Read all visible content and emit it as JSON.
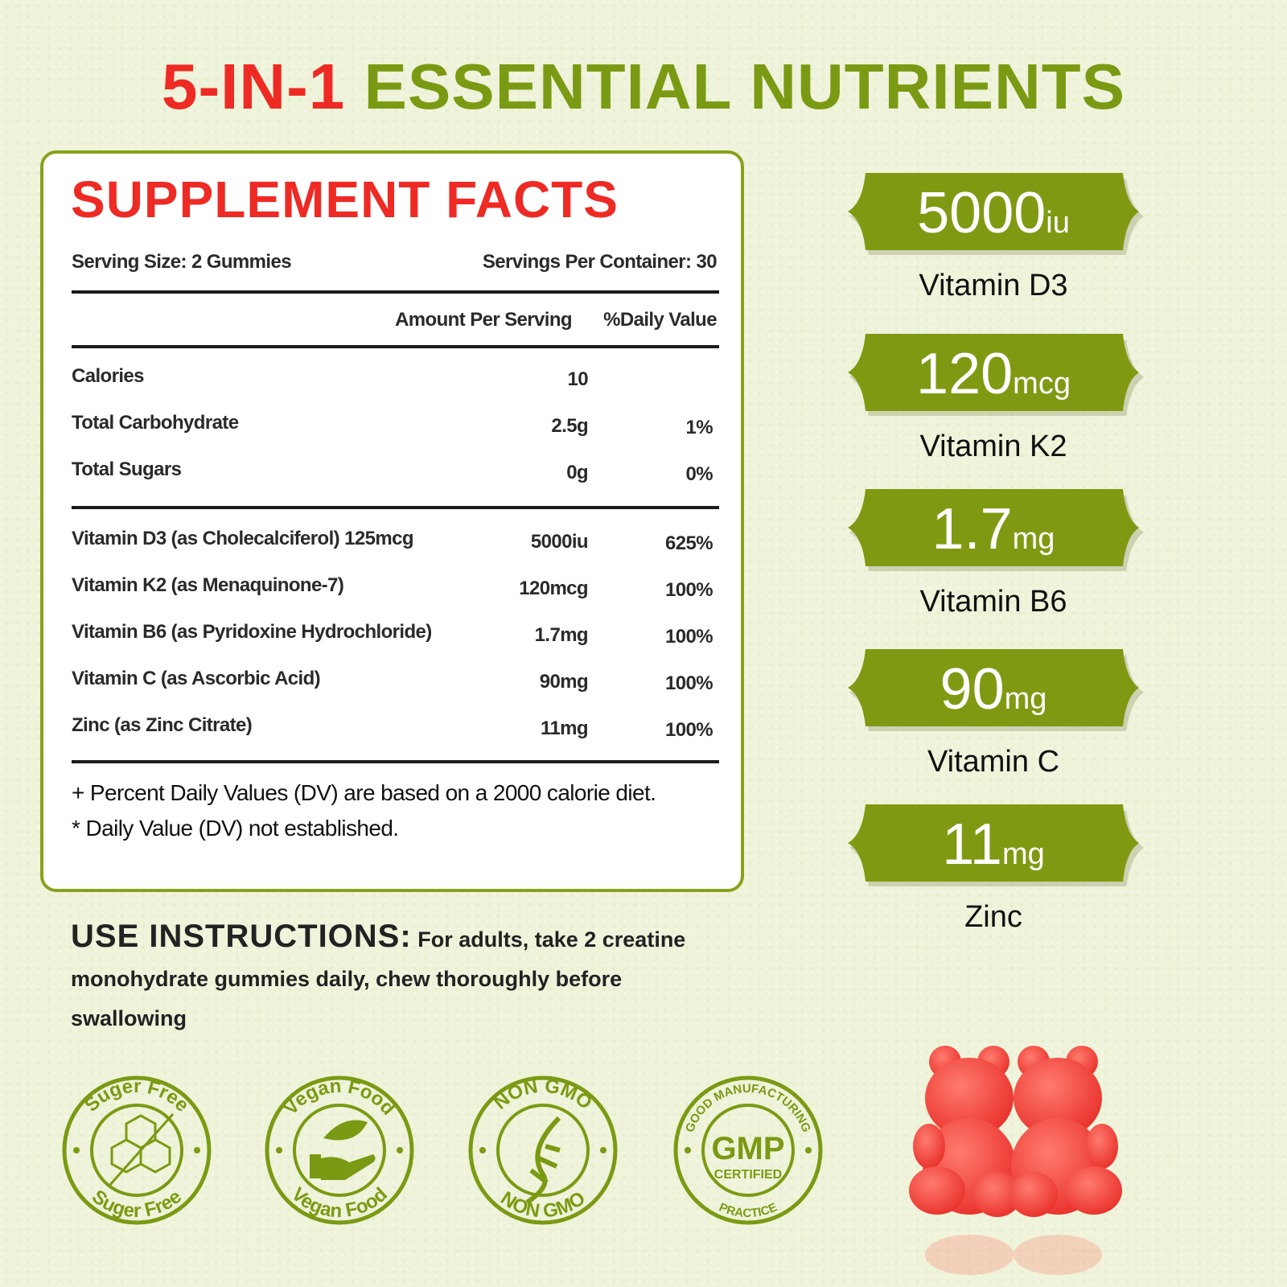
{
  "title": {
    "part1": "5-IN-1",
    "part2": "ESSENTIAL NUTRIENTS"
  },
  "colors": {
    "red": "#ee2a24",
    "green": "#7b9a13",
    "background": "#eef3d9"
  },
  "facts": {
    "heading": "SUPPLEMENT FACTS",
    "serving_size": "Serving Size: 2 Gummies",
    "servings_per_container": "Servings Per Container: 30",
    "col_amount": "Amount Per Serving",
    "col_dv": "%Daily Value",
    "basic": [
      {
        "name": "Calories",
        "amount": "10",
        "dv": ""
      },
      {
        "name": "Total Carbohydrate",
        "amount": "2.5g",
        "dv": "1%"
      },
      {
        "name": "Total Sugars",
        "amount": "0g",
        "dv": "0%"
      }
    ],
    "nutrients": [
      {
        "name": "Vitamin D3 (as Cholecalciferol) 125mcg",
        "amount": "5000iu",
        "dv": "625%"
      },
      {
        "name": "Vitamin K2 (as Menaquinone-7)",
        "amount": "120mcg",
        "dv": "100%"
      },
      {
        "name": "Vitamin B6 (as Pyridoxine Hydrochloride)",
        "amount": "1.7mg",
        "dv": "100%"
      },
      {
        "name": "Vitamin C (as Ascorbic Acid)",
        "amount": "90mg",
        "dv": "100%"
      },
      {
        "name": "Zinc (as Zinc Citrate)",
        "amount": "11mg",
        "dv": "100%"
      }
    ],
    "note1": "+ Percent Daily Values (DV) are based on a  2000 calorie diet.",
    "note2": "* Daily Value (DV) not established."
  },
  "badges": [
    {
      "value": "5000",
      "unit": "iu",
      "label": "Vitamin D3"
    },
    {
      "value": "120",
      "unit": "mcg",
      "label": "Vitamin K2"
    },
    {
      "value": "1.7",
      "unit": "mg",
      "label": "Vitamin B6"
    },
    {
      "value": "90",
      "unit": "mg",
      "label": "Vitamin C"
    },
    {
      "value": "11",
      "unit": "mg",
      "label": "Zinc"
    }
  ],
  "instructions": {
    "heading": "USE INSTRUCTIONS:",
    "text": "For adults, take 2 creatine monohydrate gummies daily, chew thoroughly before swallowing"
  },
  "seals": [
    {
      "top": "Suger Free",
      "bottom": "Suger Free",
      "icon": "sugar-cubes-icon"
    },
    {
      "top": "Vegan Food",
      "bottom": "Vegan Food",
      "icon": "leaf-hand-icon"
    },
    {
      "top": "NON GMO",
      "bottom": "NON GMO",
      "icon": "dna-icon"
    },
    {
      "top": "GOOD MANUFACTURING",
      "bottom": "PRACTICE",
      "center": "GMP",
      "sub": "CERTIFIED",
      "icon": "gmp-icon"
    }
  ]
}
